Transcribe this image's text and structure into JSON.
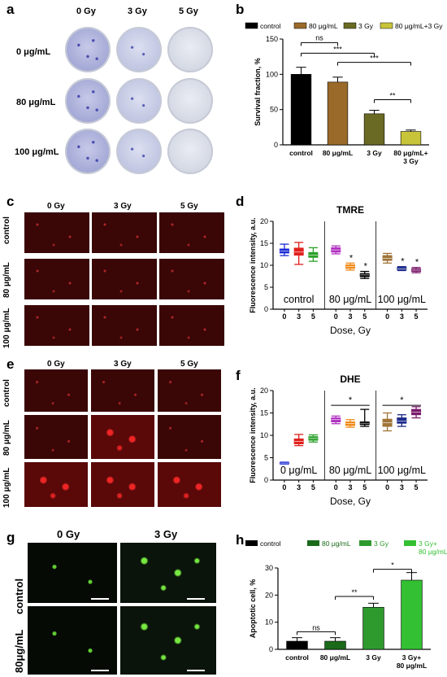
{
  "panels": {
    "a": {
      "label": "a",
      "col_headers": [
        "0 Gy",
        "3 Gy",
        "5 Gy"
      ],
      "row_headers": [
        "0 μg/mL",
        "80 μg/mL",
        "100 μg/mL"
      ]
    },
    "c": {
      "label": "c",
      "col_headers": [
        "0 Gy",
        "3 Gy",
        "5 Gy"
      ],
      "row_headers": [
        "control",
        "80 μg/mL",
        "100 μg/mL"
      ]
    },
    "e": {
      "label": "e",
      "col_headers": [
        "0 Gy",
        "3 Gy",
        "5 Gy"
      ],
      "row_headers": [
        "control",
        "80 μg/mL",
        "100 μg/mL"
      ]
    },
    "g": {
      "label": "g",
      "col_headers": [
        "0 Gy",
        "3 Gy"
      ],
      "row_headers": [
        "control",
        "80μg/mL"
      ]
    }
  },
  "chart_data": [
    {
      "id": "b",
      "label": "b",
      "type": "bar",
      "ylabel": "Survival fraction, %",
      "ylim": [
        0,
        150
      ],
      "yticks": [
        0,
        50,
        100,
        150
      ],
      "categories": [
        "control",
        "80 μg/mL",
        "3 Gy",
        "80 μg/mL+ 3 Gy"
      ],
      "values": [
        100,
        89,
        44,
        19
      ],
      "errors": [
        10,
        7,
        5,
        2
      ],
      "colors": [
        "#000000",
        "#9a6a2a",
        "#6b6a24",
        "#c8c43a"
      ],
      "legend": [
        "control",
        "80 μg/mL",
        "3 Gy",
        "80 μg/mL+3 Gy"
      ],
      "significance": [
        "ns",
        "***",
        "***",
        "**"
      ]
    },
    {
      "id": "d",
      "label": "d",
      "type": "box",
      "title": "TMRE",
      "ylabel": "Fluorescence intensity, a.u.",
      "xlabel": "Dose, Gy",
      "ylim": [
        0,
        20
      ],
      "yticks": [
        0,
        5,
        10,
        15,
        20
      ],
      "groups": [
        "control",
        "80 μg/mL",
        "100 μg/mL"
      ],
      "doses": [
        "0",
        "3",
        "5"
      ],
      "series": [
        {
          "group": "control",
          "dose": "0",
          "median": 13.2,
          "q1": 12.8,
          "q3": 13.7,
          "min": 12.2,
          "max": 14.8,
          "color": "#1a2bd6"
        },
        {
          "group": "control",
          "dose": "3",
          "median": 13.0,
          "q1": 12.3,
          "q3": 13.9,
          "min": 10.2,
          "max": 15.2,
          "color": "#e0201c"
        },
        {
          "group": "control",
          "dose": "5",
          "median": 12.3,
          "q1": 11.8,
          "q3": 12.9,
          "min": 10.9,
          "max": 14.0,
          "color": "#2aa02a"
        },
        {
          "group": "80 μg/mL",
          "dose": "0",
          "median": 13.5,
          "q1": 13.0,
          "q3": 14.0,
          "min": 12.6,
          "max": 14.4,
          "color": "#b030c0"
        },
        {
          "group": "80 μg/mL",
          "dose": "3",
          "median": 9.7,
          "q1": 9.3,
          "q3": 10.1,
          "min": 8.9,
          "max": 10.5,
          "color": "#f08a18"
        },
        {
          "group": "80 μg/mL",
          "dose": "5",
          "median": 7.8,
          "q1": 7.4,
          "q3": 8.1,
          "min": 7.0,
          "max": 8.6,
          "color": "#000000"
        },
        {
          "group": "100 μg/mL",
          "dose": "0",
          "median": 11.6,
          "q1": 11.1,
          "q3": 12.2,
          "min": 10.5,
          "max": 12.7,
          "color": "#a07438"
        },
        {
          "group": "100 μg/mL",
          "dose": "3",
          "median": 9.2,
          "q1": 9.0,
          "q3": 9.5,
          "min": 8.8,
          "max": 9.7,
          "color": "#1b2a8a"
        },
        {
          "group": "100 μg/mL",
          "dose": "5",
          "median": 8.9,
          "q1": 8.6,
          "q3": 9.2,
          "min": 8.3,
          "max": 9.5,
          "color": "#7a1a6a"
        }
      ],
      "significance": [
        "*",
        "*",
        "*",
        "*"
      ]
    },
    {
      "id": "f",
      "label": "f",
      "type": "box",
      "title": "DHE",
      "ylabel": "Fluorescence intensity, a.u.",
      "xlabel": "Dose, Gy",
      "ylim": [
        0,
        20
      ],
      "yticks": [
        0,
        5,
        10,
        15,
        20
      ],
      "groups": [
        "0 μg/mL",
        "80 μg/mL",
        "100 μg/mL"
      ],
      "doses": [
        "0",
        "3",
        "5"
      ],
      "series": [
        {
          "group": "0 μg/mL",
          "dose": "0",
          "median": 3.8,
          "q1": 3.7,
          "q3": 3.9,
          "min": 3.6,
          "max": 4.0,
          "color": "#1a2bd6"
        },
        {
          "group": "0 μg/mL",
          "dose": "3",
          "median": 8.6,
          "q1": 8.1,
          "q3": 9.2,
          "min": 7.7,
          "max": 10.2,
          "color": "#e0201c"
        },
        {
          "group": "0 μg/mL",
          "dose": "5",
          "median": 9.3,
          "q1": 8.9,
          "q3": 9.7,
          "min": 8.5,
          "max": 10.1,
          "color": "#2aa02a"
        },
        {
          "group": "80 μg/mL",
          "dose": "0",
          "median": 13.5,
          "q1": 13.0,
          "q3": 13.9,
          "min": 12.6,
          "max": 14.3,
          "color": "#b030c0"
        },
        {
          "group": "80 μg/mL",
          "dose": "3",
          "median": 12.6,
          "q1": 12.2,
          "q3": 13.0,
          "min": 11.8,
          "max": 13.5,
          "color": "#f08a18"
        },
        {
          "group": "80 μg/mL",
          "dose": "5",
          "median": 12.7,
          "q1": 12.4,
          "q3": 13.0,
          "min": 12.0,
          "max": 15.8,
          "color": "#000000"
        },
        {
          "group": "100 μg/mL",
          "dose": "0",
          "median": 12.8,
          "q1": 12.0,
          "q3": 13.6,
          "min": 11.0,
          "max": 15.0,
          "color": "#a07438"
        },
        {
          "group": "100 μg/mL",
          "dose": "3",
          "median": 13.2,
          "q1": 12.7,
          "q3": 13.9,
          "min": 12.0,
          "max": 14.6,
          "color": "#1b2a8a"
        },
        {
          "group": "100 μg/mL",
          "dose": "5",
          "median": 15.2,
          "q1": 14.6,
          "q3": 15.8,
          "min": 13.9,
          "max": 16.4,
          "color": "#7a1a6a"
        }
      ],
      "significance": [
        "*",
        "*"
      ]
    },
    {
      "id": "h",
      "label": "h",
      "type": "bar",
      "ylabel": "Apoptotic cell, %",
      "ylim": [
        0,
        30
      ],
      "yticks": [
        0,
        10,
        20,
        30
      ],
      "categories": [
        "control",
        "80 μg/mL",
        "3 Gy",
        "3 Gy+ 80 μg/mL"
      ],
      "values": [
        3,
        3,
        15.5,
        25.5
      ],
      "errors": [
        1.3,
        1.3,
        1.5,
        2.8
      ],
      "colors": [
        "#000000",
        "#1a6a1a",
        "#2e9a2e",
        "#33c033"
      ],
      "legend": [
        "control",
        "80 μg/mL",
        "3 Gy",
        "3 Gy+ 80 μg/mL"
      ],
      "significance": [
        "ns",
        "**",
        "*"
      ]
    }
  ],
  "colors": {
    "red_fluor_bg": "#3a0606",
    "green_fluor_bg": "#050a05"
  }
}
